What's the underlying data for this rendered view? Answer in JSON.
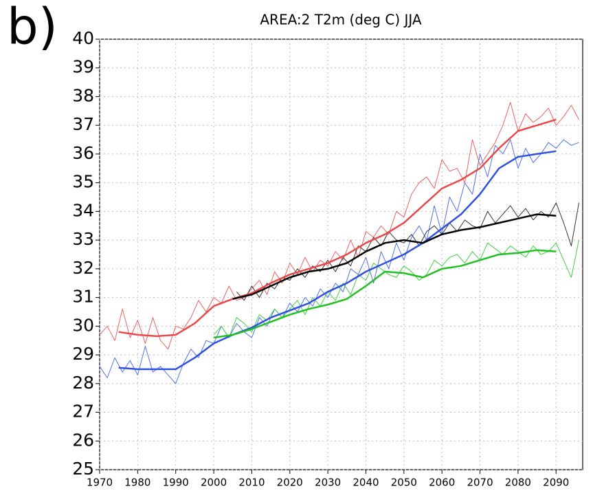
{
  "chart_data": {
    "type": "line",
    "title": "AREA:2 T2m (deg C) JJA",
    "panel_label": "b)",
    "xlim": [
      1970,
      2097
    ],
    "ylim": [
      25,
      40
    ],
    "xticks": [
      1970,
      1980,
      1990,
      2000,
      2010,
      2020,
      2030,
      2040,
      2050,
      2060,
      2070,
      2080,
      2090
    ],
    "yticks": [
      25,
      26,
      27,
      28,
      29,
      30,
      31,
      32,
      33,
      34,
      35,
      36,
      37,
      38,
      39,
      40
    ],
    "grid": true,
    "series": [
      {
        "color": "#f06060",
        "line_width": 1,
        "x": [
          1970,
          1972,
          1974,
          1976,
          1978,
          1980,
          1982,
          1984,
          1986,
          1988,
          1990,
          1992,
          1994,
          1996,
          1998,
          2000,
          2002,
          2004,
          2006,
          2008,
          2010,
          2012,
          2014,
          2016,
          2018,
          2020,
          2022,
          2024,
          2026,
          2028,
          2030,
          2032,
          2034,
          2036,
          2038,
          2040,
          2042,
          2044,
          2046,
          2048,
          2050,
          2052,
          2054,
          2056,
          2058,
          2060,
          2062,
          2064,
          2066,
          2068,
          2070,
          2072,
          2074,
          2076,
          2078,
          2080,
          2082,
          2084,
          2086,
          2088,
          2090,
          2092,
          2094,
          2096
        ],
        "values": [
          29.7,
          30.0,
          29.5,
          30.6,
          29.6,
          30.2,
          29.4,
          30.3,
          29.5,
          29.2,
          30.0,
          29.9,
          30.3,
          30.9,
          30.5,
          31.0,
          30.8,
          31.4,
          30.9,
          31.0,
          31.3,
          31.6,
          31.1,
          31.9,
          31.5,
          32.2,
          31.8,
          32.4,
          31.9,
          32.3,
          32.1,
          32.6,
          32.3,
          33.0,
          32.4,
          33.3,
          33.1,
          33.5,
          33.2,
          34.0,
          33.8,
          34.6,
          35.0,
          35.2,
          34.8,
          35.8,
          35.4,
          35.5,
          35.0,
          36.5,
          35.6,
          36.0,
          36.4,
          37.0,
          37.8,
          36.8,
          37.4,
          37.1,
          37.3,
          37.6,
          37.0,
          37.3,
          37.7,
          37.2
        ]
      },
      {
        "color": "#5070ee",
        "line_width": 1,
        "x": [
          1970,
          1972,
          1974,
          1976,
          1978,
          1980,
          1982,
          1984,
          1986,
          1988,
          1990,
          1992,
          1994,
          1996,
          1998,
          2000,
          2002,
          2004,
          2006,
          2008,
          2010,
          2012,
          2014,
          2016,
          2018,
          2020,
          2022,
          2024,
          2026,
          2028,
          2030,
          2032,
          2034,
          2036,
          2038,
          2040,
          2042,
          2044,
          2046,
          2048,
          2050,
          2052,
          2054,
          2056,
          2058,
          2060,
          2062,
          2064,
          2066,
          2068,
          2070,
          2072,
          2074,
          2076,
          2078,
          2080,
          2082,
          2084,
          2086,
          2088,
          2090,
          2092,
          2094,
          2096
        ],
        "values": [
          28.6,
          28.2,
          28.9,
          28.4,
          28.8,
          28.3,
          29.3,
          28.4,
          28.6,
          28.3,
          28.0,
          28.7,
          29.2,
          28.9,
          29.5,
          29.4,
          30.0,
          29.6,
          30.1,
          29.8,
          29.6,
          30.3,
          30.0,
          30.6,
          30.3,
          30.8,
          30.5,
          31.0,
          30.7,
          31.3,
          31.0,
          31.5,
          31.2,
          32.0,
          31.8,
          32.4,
          31.5,
          32.6,
          32.0,
          32.9,
          32.3,
          33.1,
          33.5,
          33.0,
          34.2,
          33.2,
          34.5,
          34.0,
          35.0,
          34.6,
          36.0,
          35.2,
          36.3,
          36.0,
          36.5,
          35.5,
          36.2,
          35.7,
          36.0,
          36.4,
          36.2,
          36.5,
          36.3,
          36.4
        ]
      },
      {
        "color": "#303030",
        "line_width": 1,
        "x": [
          2006,
          2008,
          2010,
          2012,
          2014,
          2016,
          2018,
          2020,
          2022,
          2024,
          2026,
          2028,
          2030,
          2032,
          2034,
          2036,
          2038,
          2040,
          2042,
          2044,
          2046,
          2048,
          2050,
          2052,
          2054,
          2056,
          2058,
          2060,
          2062,
          2064,
          2066,
          2068,
          2070,
          2072,
          2074,
          2076,
          2078,
          2080,
          2082,
          2084,
          2086,
          2088,
          2090,
          2092,
          2094,
          2096
        ],
        "values": [
          31.2,
          30.9,
          31.4,
          31.0,
          31.5,
          31.3,
          31.7,
          31.6,
          32.0,
          31.7,
          32.1,
          31.9,
          32.3,
          31.9,
          32.4,
          32.1,
          32.8,
          32.6,
          33.1,
          32.8,
          33.3,
          33.0,
          32.9,
          33.2,
          32.8,
          33.3,
          33.5,
          33.2,
          33.6,
          33.3,
          33.7,
          33.5,
          33.4,
          34.0,
          33.6,
          33.9,
          34.2,
          33.8,
          34.1,
          33.7,
          34.0,
          33.8,
          34.3,
          33.6,
          32.8,
          34.3
        ]
      },
      {
        "color": "#40d040",
        "line_width": 1,
        "x": [
          2000,
          2002,
          2004,
          2006,
          2008,
          2010,
          2012,
          2014,
          2016,
          2018,
          2020,
          2022,
          2024,
          2026,
          2028,
          2030,
          2032,
          2034,
          2036,
          2038,
          2040,
          2042,
          2044,
          2046,
          2048,
          2050,
          2052,
          2054,
          2056,
          2058,
          2060,
          2062,
          2064,
          2066,
          2068,
          2070,
          2072,
          2074,
          2076,
          2078,
          2080,
          2082,
          2084,
          2086,
          2088,
          2090,
          2092,
          2094,
          2096
        ],
        "values": [
          29.7,
          30.0,
          29.6,
          30.3,
          30.1,
          29.8,
          30.4,
          30.2,
          30.6,
          30.3,
          30.6,
          30.9,
          30.4,
          31.0,
          30.7,
          31.2,
          30.9,
          31.5,
          31.1,
          31.8,
          31.6,
          32.2,
          32.0,
          31.8,
          31.7,
          32.1,
          31.9,
          31.6,
          31.8,
          32.3,
          32.1,
          32.4,
          32.5,
          32.2,
          32.6,
          32.3,
          32.9,
          32.7,
          32.5,
          32.8,
          32.6,
          32.4,
          32.8,
          32.5,
          32.6,
          32.9,
          32.3,
          31.7,
          33.0
        ]
      },
      {
        "color": "#e84848",
        "line_width": 2.5,
        "x": [
          1975,
          1980,
          1985,
          1990,
          1995,
          2000,
          2005,
          2010,
          2015,
          2020,
          2025,
          2030,
          2035,
          2040,
          2045,
          2050,
          2055,
          2060,
          2065,
          2070,
          2075,
          2080,
          2085,
          2090
        ],
        "values": [
          29.8,
          29.7,
          29.65,
          29.7,
          30.1,
          30.7,
          30.95,
          31.15,
          31.5,
          31.8,
          32.0,
          32.2,
          32.5,
          32.9,
          33.2,
          33.6,
          34.2,
          34.8,
          35.1,
          35.5,
          36.2,
          36.8,
          37.0,
          37.2
        ]
      },
      {
        "color": "#3050e0",
        "line_width": 2.5,
        "x": [
          1975,
          1980,
          1985,
          1990,
          1995,
          2000,
          2005,
          2010,
          2015,
          2020,
          2025,
          2030,
          2035,
          2040,
          2045,
          2050,
          2055,
          2060,
          2065,
          2070,
          2075,
          2080,
          2085,
          2090
        ],
        "values": [
          28.55,
          28.5,
          28.5,
          28.5,
          28.9,
          29.4,
          29.7,
          29.95,
          30.3,
          30.55,
          30.8,
          31.2,
          31.5,
          31.9,
          32.2,
          32.5,
          32.9,
          33.4,
          33.9,
          34.6,
          35.5,
          35.9,
          36.0,
          36.1
        ]
      },
      {
        "color": "#000000",
        "line_width": 2.5,
        "x": [
          2005,
          2010,
          2015,
          2020,
          2025,
          2030,
          2035,
          2040,
          2045,
          2050,
          2055,
          2060,
          2065,
          2070,
          2075,
          2080,
          2085,
          2090
        ],
        "values": [
          30.95,
          31.1,
          31.4,
          31.7,
          31.9,
          32.0,
          32.2,
          32.6,
          32.9,
          33.0,
          32.9,
          33.2,
          33.35,
          33.45,
          33.6,
          33.75,
          33.9,
          33.85
        ]
      },
      {
        "color": "#20c020",
        "line_width": 2.5,
        "x": [
          2000,
          2005,
          2010,
          2015,
          2020,
          2025,
          2030,
          2035,
          2040,
          2045,
          2050,
          2055,
          2060,
          2065,
          2070,
          2075,
          2080,
          2085,
          2090
        ],
        "values": [
          29.6,
          29.7,
          29.9,
          30.15,
          30.4,
          30.6,
          30.75,
          30.95,
          31.4,
          31.9,
          31.85,
          31.7,
          32.0,
          32.1,
          32.3,
          32.5,
          32.55,
          32.65,
          32.6
        ]
      }
    ]
  }
}
